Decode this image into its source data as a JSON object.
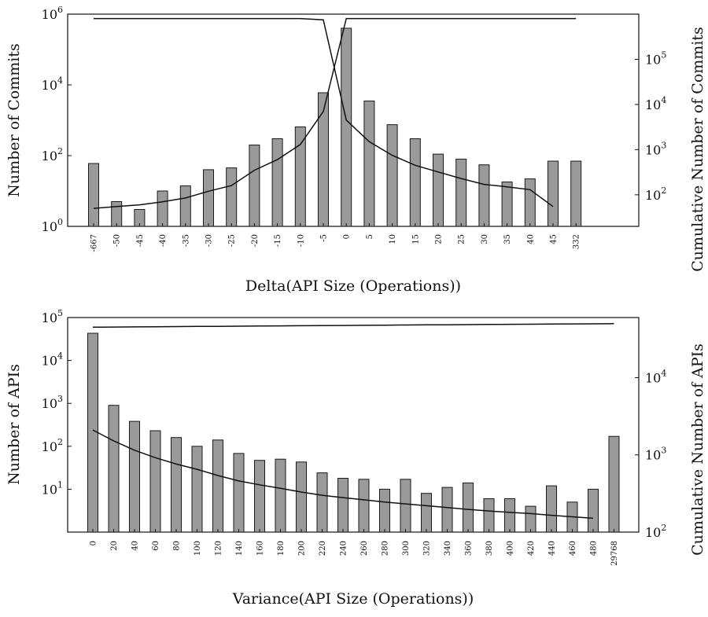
{
  "chart_data": [
    {
      "type": "bar",
      "y_scale": "log",
      "y2_scale": "log",
      "xlabel": "Delta(API Size (Operations))",
      "ylabel": "Number of Commits",
      "y2label": "Cumulative Number of Commits",
      "ylim": [
        1,
        1000000
      ],
      "y2lim": [
        20,
        1000000
      ],
      "yticks": [
        {
          "base": "10",
          "exp": "0",
          "value": 1
        },
        {
          "base": "10",
          "exp": "2",
          "value": 100
        },
        {
          "base": "10",
          "exp": "4",
          "value": 10000
        },
        {
          "base": "10",
          "exp": "6",
          "value": 1000000
        }
      ],
      "y2ticks": [
        {
          "base": "10",
          "exp": "2",
          "value": 100
        },
        {
          "base": "10",
          "exp": "3",
          "value": 1000
        },
        {
          "base": "10",
          "exp": "4",
          "value": 10000
        },
        {
          "base": "10",
          "exp": "5",
          "value": 100000
        }
      ],
      "categories": [
        "-667",
        "-50",
        "-45",
        "-40",
        "-35",
        "-30",
        "-25",
        "-20",
        "-15",
        "-10",
        "-5",
        "0",
        "5",
        "10",
        "15",
        "20",
        "25",
        "30",
        "35",
        "40",
        "45",
        "332"
      ],
      "values": [
        60,
        5,
        3,
        10,
        14,
        40,
        45,
        200,
        300,
        650,
        6000,
        400000,
        3500,
        750,
        300,
        110,
        80,
        55,
        18,
        22,
        70,
        70
      ],
      "series": [
        {
          "name": "",
          "axis": "right",
          "values": [
            50,
            55,
            60,
            70,
            85,
            120,
            160,
            350,
            600,
            1300,
            7000,
            800000,
            800000,
            800000,
            800000,
            800000,
            800000,
            800000,
            800000,
            800000,
            800000,
            800000
          ]
        },
        {
          "name": "",
          "axis": "right",
          "values": [
            800000,
            800000,
            800000,
            800000,
            800000,
            800000,
            800000,
            800000,
            800000,
            800000,
            750000,
            4500,
            1500,
            750,
            450,
            320,
            230,
            170,
            150,
            130,
            55,
            null
          ]
        }
      ]
    },
    {
      "type": "bar",
      "y_scale": "log",
      "y2_scale": "log",
      "xlabel": "Variance(API Size (Operations))",
      "ylabel": "Number of APIs",
      "y2label": "Cumulative Number of APIs",
      "ylim": [
        1,
        100000
      ],
      "y2lim": [
        100,
        60000
      ],
      "yticks": [
        {
          "base": "10",
          "exp": "1",
          "value": 10
        },
        {
          "base": "10",
          "exp": "2",
          "value": 100
        },
        {
          "base": "10",
          "exp": "3",
          "value": 1000
        },
        {
          "base": "10",
          "exp": "4",
          "value": 10000
        },
        {
          "base": "10",
          "exp": "5",
          "value": 100000
        }
      ],
      "y2ticks": [
        {
          "base": "10",
          "exp": "2",
          "value": 100
        },
        {
          "base": "10",
          "exp": "3",
          "value": 1000
        },
        {
          "base": "10",
          "exp": "4",
          "value": 10000
        }
      ],
      "categories": [
        "0",
        "20",
        "40",
        "60",
        "80",
        "100",
        "120",
        "140",
        "160",
        "180",
        "200",
        "220",
        "240",
        "260",
        "280",
        "300",
        "320",
        "340",
        "360",
        "380",
        "400",
        "420",
        "440",
        "460",
        "480",
        "29768"
      ],
      "values": [
        43000,
        900,
        380,
        230,
        160,
        100,
        140,
        68,
        47,
        50,
        43,
        24,
        18,
        17,
        10,
        17,
        8,
        11,
        14,
        6,
        6,
        4,
        12,
        5,
        10,
        170
      ],
      "series": [
        {
          "name": "",
          "axis": "right",
          "values": [
            45000,
            45200,
            45400,
            45600,
            45800,
            46000,
            46200,
            46400,
            46600,
            46800,
            47000,
            47200,
            47400,
            47600,
            47800,
            48000,
            48200,
            48400,
            48600,
            48800,
            49000,
            49200,
            49400,
            49600,
            49800,
            50000
          ]
        },
        {
          "name": "",
          "axis": "right",
          "values": [
            2100,
            1520,
            1150,
            920,
            760,
            650,
            540,
            460,
            410,
            370,
            330,
            300,
            280,
            262,
            245,
            232,
            220,
            208,
            197,
            188,
            180,
            174,
            165,
            158,
            151,
            null
          ]
        }
      ]
    }
  ]
}
